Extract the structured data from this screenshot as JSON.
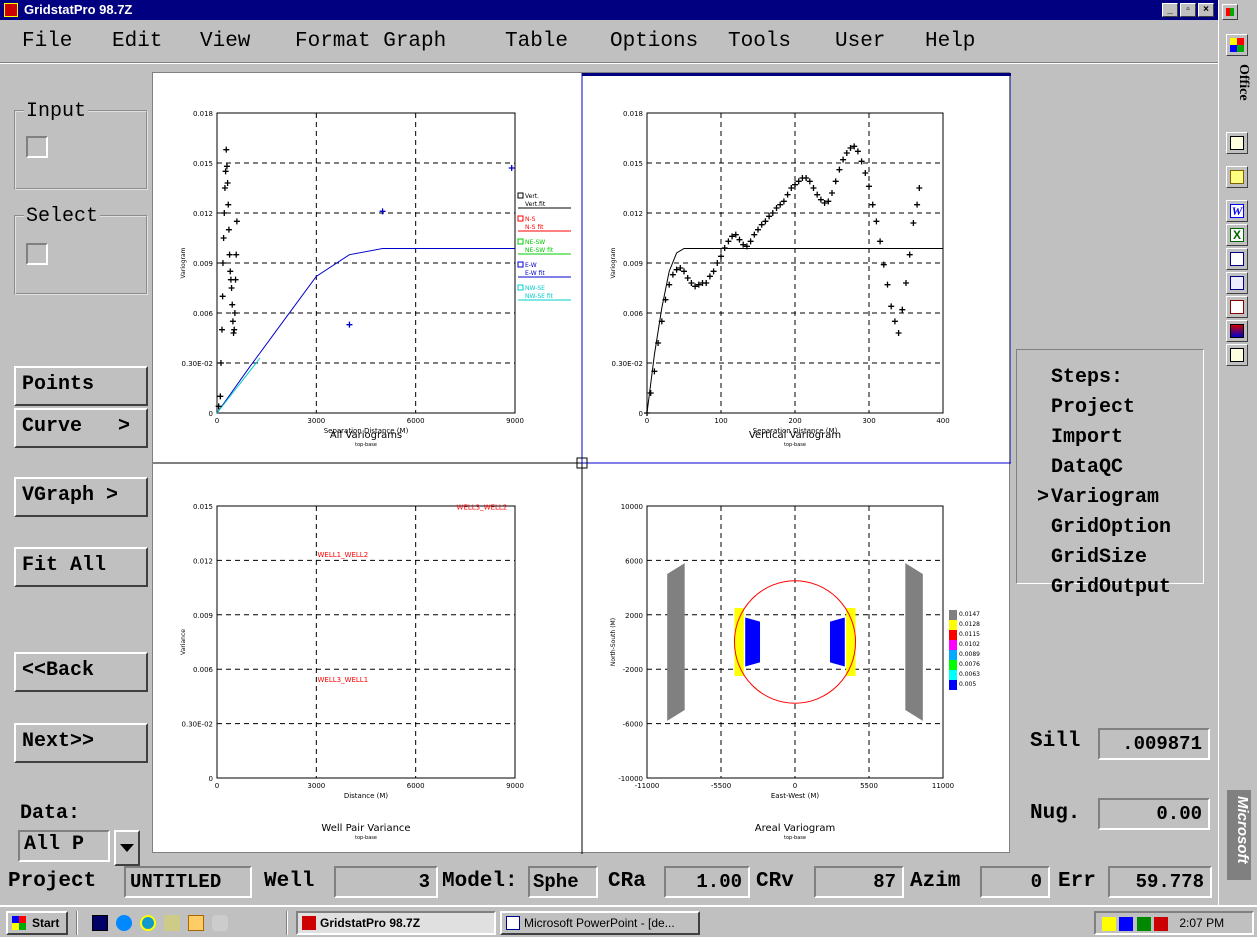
{
  "app": {
    "title": "GridstatPro 98.7Z"
  },
  "menu": [
    "File",
    "Edit",
    "View",
    "Format Graph",
    "Table",
    "Options",
    "Tools",
    "User",
    "Help"
  ],
  "left": {
    "input_label": "Input",
    "select_label": "Select",
    "points": "Points",
    "curve": "Curve   >",
    "vgraph": "VGraph >",
    "fitall": "Fit All",
    "back": "<<Back",
    "next": "Next>>",
    "data_label": "Data:",
    "data_value": "All P"
  },
  "steps": {
    "title": "Steps:",
    "items": [
      "Project",
      "Import",
      "DataQC",
      "Variogram",
      "GridOption",
      "GridSize",
      "GridOutput"
    ],
    "current": "Variogram"
  },
  "params": {
    "sill_label": "Sill",
    "sill": ".009871",
    "nug_label": "Nug.",
    "nug": "0.00"
  },
  "status": {
    "project_label": "Project",
    "project": "UNTITLED",
    "well_label": "Well",
    "well": "3",
    "model_label": "Model:",
    "model": "Sphe",
    "cra_label": "CRa",
    "cra": "1.00",
    "crv_label": "CRv",
    "crv": "87",
    "azim_label": "Azim",
    "azim": "0",
    "err_label": "Err",
    "err": "59.778"
  },
  "office": {
    "label": "Office",
    "brand": "Microsoft"
  },
  "taskbar": {
    "start": "Start",
    "tasks": [
      "GridstatPro 98.7Z",
      "Microsoft PowerPoint - [de..."
    ],
    "clock": "2:07 PM"
  },
  "chart_data": [
    {
      "type": "scatter",
      "title": "All Variograms",
      "subtitle": "top-base",
      "xlabel": "Separation Distance (M)",
      "ylabel": "Variogram",
      "xlim": [
        0,
        9000
      ],
      "ylim": [
        0,
        0.018
      ],
      "xticks": [
        "0",
        "3000",
        "6000",
        "9000"
      ],
      "yticks": [
        "0",
        "0.30E-02",
        "0.006",
        "0.009",
        "0.012",
        "0.015",
        "0.018"
      ],
      "legend": [
        "Vert.",
        "Vert.fit",
        "N-S",
        "N-S fit",
        "NE-SW",
        "NE-SW fit",
        "E-W",
        "E-W fit",
        "NW-SE",
        "NW-SE fit"
      ],
      "series": [
        {
          "name": "Vert.",
          "color": "#000000",
          "points": [
            [
              50,
              0.0004
            ],
            [
              100,
              0.001
            ],
            [
              120,
              0.003
            ],
            [
              150,
              0.005
            ],
            [
              170,
              0.007
            ],
            [
              180,
              0.009
            ],
            [
              200,
              0.0105
            ],
            [
              220,
              0.012
            ],
            [
              240,
              0.0135
            ],
            [
              260,
              0.0145
            ],
            [
              280,
              0.0158
            ],
            [
              300,
              0.0148
            ],
            [
              320,
              0.0138
            ],
            [
              340,
              0.0125
            ],
            [
              360,
              0.011
            ],
            [
              380,
              0.0095
            ],
            [
              400,
              0.0085
            ],
            [
              420,
              0.008
            ],
            [
              440,
              0.0075
            ],
            [
              460,
              0.0065
            ],
            [
              480,
              0.0055
            ],
            [
              500,
              0.0048
            ],
            [
              520,
              0.005
            ],
            [
              540,
              0.006
            ],
            [
              560,
              0.008
            ],
            [
              580,
              0.0095
            ],
            [
              600,
              0.0115
            ]
          ]
        },
        {
          "name": "E-W",
          "color": "#0000cc",
          "points": [
            [
              4000,
              0.0053
            ],
            [
              5000,
              0.0121
            ],
            [
              8900,
              0.0147
            ]
          ]
        }
      ],
      "fits": [
        {
          "name": "E-W fit",
          "color": "#0000cc",
          "x": [
            0,
            1000,
            2000,
            3000,
            4000,
            5000,
            9000
          ],
          "y": [
            0,
            0.0028,
            0.0055,
            0.0082,
            0.0095,
            0.00987,
            0.00987
          ]
        },
        {
          "name": "NW-SE fit",
          "color": "#00cccc",
          "x": [
            0,
            1300
          ],
          "y": [
            0,
            0.0033
          ]
        }
      ]
    },
    {
      "type": "scatter",
      "title": "Vertical Variogram",
      "subtitle": "top-base",
      "xlabel": "Separation Distance (M)",
      "ylabel": "Variogram",
      "xlim": [
        0,
        400
      ],
      "ylim": [
        0,
        0.018
      ],
      "xticks": [
        "0",
        "100",
        "200",
        "300",
        "400"
      ],
      "yticks": [
        "0",
        "0.30E-02",
        "0.006",
        "0.009",
        "0.012",
        "0.015",
        "0.018"
      ],
      "points": [
        [
          0,
          0
        ],
        [
          5,
          0.0012
        ],
        [
          10,
          0.0025
        ],
        [
          15,
          0.0042
        ],
        [
          20,
          0.0055
        ],
        [
          25,
          0.0068
        ],
        [
          30,
          0.0077
        ],
        [
          35,
          0.0083
        ],
        [
          40,
          0.0086
        ],
        [
          45,
          0.0087
        ],
        [
          50,
          0.0085
        ],
        [
          55,
          0.0081
        ],
        [
          60,
          0.0078
        ],
        [
          65,
          0.0076
        ],
        [
          70,
          0.0077
        ],
        [
          75,
          0.0078
        ],
        [
          80,
          0.0078
        ],
        [
          85,
          0.0082
        ],
        [
          90,
          0.0085
        ],
        [
          95,
          0.009
        ],
        [
          100,
          0.0094
        ],
        [
          105,
          0.0099
        ],
        [
          110,
          0.0103
        ],
        [
          115,
          0.0106
        ],
        [
          120,
          0.0107
        ],
        [
          125,
          0.0104
        ],
        [
          130,
          0.0101
        ],
        [
          135,
          0.01
        ],
        [
          140,
          0.0103
        ],
        [
          145,
          0.0107
        ],
        [
          150,
          0.011
        ],
        [
          155,
          0.0113
        ],
        [
          160,
          0.0115
        ],
        [
          165,
          0.0118
        ],
        [
          170,
          0.012
        ],
        [
          175,
          0.0123
        ],
        [
          180,
          0.0125
        ],
        [
          185,
          0.0127
        ],
        [
          190,
          0.0131
        ],
        [
          195,
          0.0135
        ],
        [
          200,
          0.0137
        ],
        [
          205,
          0.0139
        ],
        [
          210,
          0.0141
        ],
        [
          215,
          0.0141
        ],
        [
          220,
          0.0139
        ],
        [
          225,
          0.0135
        ],
        [
          230,
          0.0131
        ],
        [
          235,
          0.0128
        ],
        [
          240,
          0.0126
        ],
        [
          245,
          0.0127
        ],
        [
          250,
          0.0132
        ],
        [
          255,
          0.0139
        ],
        [
          260,
          0.0146
        ],
        [
          265,
          0.0152
        ],
        [
          270,
          0.0156
        ],
        [
          275,
          0.0159
        ],
        [
          280,
          0.016
        ],
        [
          285,
          0.0157
        ],
        [
          290,
          0.0151
        ],
        [
          295,
          0.0144
        ],
        [
          300,
          0.0136
        ],
        [
          305,
          0.0125
        ],
        [
          310,
          0.0115
        ],
        [
          315,
          0.0103
        ],
        [
          320,
          0.0089
        ],
        [
          325,
          0.0077
        ],
        [
          330,
          0.0064
        ],
        [
          335,
          0.0055
        ],
        [
          340,
          0.0048
        ],
        [
          345,
          0.0062
        ],
        [
          350,
          0.0078
        ],
        [
          355,
          0.0095
        ],
        [
          360,
          0.0114
        ],
        [
          365,
          0.0125
        ],
        [
          368,
          0.0135
        ]
      ],
      "fit": {
        "x": [
          0,
          10,
          20,
          30,
          40,
          50,
          400
        ],
        "y": [
          0,
          0.0035,
          0.0063,
          0.0085,
          0.0096,
          0.00987,
          0.00987
        ]
      }
    },
    {
      "type": "scatter",
      "title": "Well Pair Variance",
      "subtitle": "top-base",
      "xlabel": "Distance (M)",
      "ylabel": "Variance",
      "xlim": [
        0,
        9000
      ],
      "ylim": [
        0,
        0.015
      ],
      "xticks": [
        "0",
        "3000",
        "6000",
        "9000"
      ],
      "yticks": [
        "0",
        "0.30E-02",
        "0.006",
        "0.009",
        "0.012",
        "0.015"
      ],
      "labels": [
        {
          "x": 8000,
          "y": 0.0148,
          "text": "WELL3_WELL2"
        },
        {
          "x": 3800,
          "y": 0.0122,
          "text": "WELL1_WELL2"
        },
        {
          "x": 3800,
          "y": 0.0053,
          "text": "WELL3_WELL1"
        }
      ]
    },
    {
      "type": "heatmap",
      "title": "Areal Variogram",
      "subtitle": "top-base",
      "xlabel": "East-West (M)",
      "ylabel": "North-South (M)",
      "xlim": [
        -11000,
        11000
      ],
      "ylim": [
        -10000,
        10000
      ],
      "xticks": [
        "-11000",
        "-5500",
        "0",
        "5500",
        "11000"
      ],
      "yticks": [
        "-10000",
        "-6000",
        "-2000",
        "2000",
        "6000",
        "10000"
      ],
      "legend": [
        {
          "value": "0.0147",
          "color": "#808080"
        },
        {
          "value": "0.0128",
          "color": "#ffff00"
        },
        {
          "value": "0.0115",
          "color": "#ff0000"
        },
        {
          "value": "0.0102",
          "color": "#ff00ff"
        },
        {
          "value": "0.0089",
          "color": "#00aaff"
        },
        {
          "value": "0.0076",
          "color": "#00ff00"
        },
        {
          "value": "0.0063",
          "color": "#00ffff"
        },
        {
          "value": "0.005",
          "color": "#0000ff"
        }
      ],
      "range_radius": 4500
    }
  ]
}
